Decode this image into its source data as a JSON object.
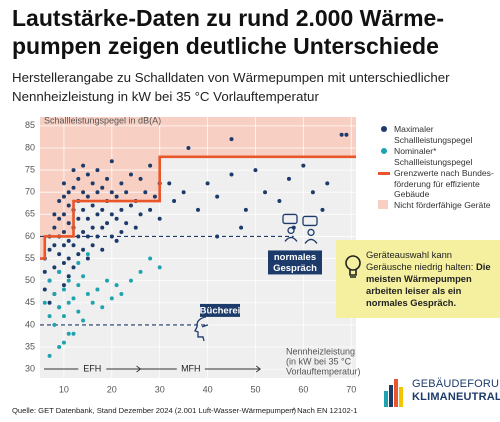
{
  "chart_data": {
    "type": "scatter",
    "title_lines": [
      "Lautstärke-Daten zu rund 2.000 Wärme-",
      "pumpen zeigen deutliche Unterschiede"
    ],
    "subtitle_lines": [
      "Herstellerangabe zu Schalldaten von Wärmepumpen mit unterschiedlicher",
      "Nennheizleistung in kW bei 35 °C Vorlauftemperatur"
    ],
    "y_label": "Schallleistungspegel in dB(A)",
    "x_label_lines": [
      "Nennheizleistung",
      "(in kW bei 35 °C",
      "Vorlauftemperatur)"
    ],
    "xlim": [
      5,
      71
    ],
    "ylim": [
      28,
      87
    ],
    "xticks": [
      10,
      20,
      30,
      40,
      50,
      60,
      70
    ],
    "yticks": [
      30,
      35,
      40,
      45,
      50,
      55,
      60,
      65,
      70,
      75,
      80,
      85
    ],
    "grid": true,
    "series": [
      {
        "name": "Maximaler Schallleistungspegel",
        "color": "#1d3b6a",
        "x": [
          6,
          6,
          6,
          7,
          7,
          7,
          7,
          8,
          8,
          8,
          8,
          8,
          9,
          9,
          9,
          9,
          9,
          9,
          10,
          10,
          10,
          10,
          10,
          10,
          10,
          11,
          11,
          11,
          11,
          11,
          11,
          12,
          12,
          12,
          12,
          12,
          12,
          13,
          13,
          13,
          13,
          13,
          14,
          14,
          14,
          14,
          14,
          15,
          15,
          15,
          15,
          15,
          16,
          16,
          16,
          16,
          17,
          17,
          17,
          17,
          18,
          18,
          18,
          18,
          19,
          19,
          19,
          20,
          20,
          20,
          20,
          21,
          21,
          21,
          22,
          22,
          22,
          23,
          23,
          24,
          24,
          25,
          25,
          26,
          26,
          27,
          28,
          28,
          29,
          30,
          30,
          32,
          33,
          35,
          36,
          38,
          40,
          42,
          42,
          45,
          45,
          47,
          48,
          50,
          52,
          55,
          57,
          58,
          60,
          62,
          64,
          65,
          68,
          69
        ],
        "values": [
          55,
          52,
          48,
          60,
          57,
          50,
          45,
          65,
          62,
          58,
          53,
          47,
          68,
          64,
          60,
          56,
          52,
          44,
          72,
          69,
          65,
          61,
          58,
          54,
          49,
          70,
          67,
          63,
          59,
          55,
          51,
          75,
          71,
          66,
          62,
          58,
          53,
          73,
          68,
          64,
          60,
          56,
          76,
          70,
          66,
          61,
          57,
          74,
          69,
          64,
          60,
          55,
          72,
          67,
          62,
          58,
          75,
          70,
          65,
          60,
          71,
          66,
          62,
          57,
          73,
          68,
          63,
          77,
          70,
          65,
          60,
          69,
          64,
          59,
          72,
          66,
          61,
          70,
          63,
          74,
          67,
          68,
          62,
          73,
          65,
          70,
          76,
          66,
          69,
          72,
          64,
          72,
          68,
          70,
          80,
          66,
          72,
          69,
          60,
          74,
          82,
          62,
          66,
          75,
          70,
          68,
          73,
          62,
          76,
          70,
          66,
          72,
          83,
          83
        ]
      },
      {
        "name": "Nominaler* Schallleistungspegel",
        "color": "#1fa3b0",
        "x": [
          6,
          7,
          7,
          8,
          8,
          9,
          9,
          10,
          10,
          10,
          11,
          11,
          12,
          12,
          13,
          13,
          14,
          14,
          15,
          16,
          17,
          18,
          19,
          20,
          21,
          22,
          24,
          26,
          28,
          30,
          7,
          9,
          11,
          13,
          15
        ],
        "values": [
          45,
          42,
          50,
          47,
          40,
          52,
          44,
          48,
          42,
          36,
          50,
          45,
          46,
          38,
          49,
          43,
          51,
          41,
          47,
          45,
          48,
          44,
          50,
          46,
          49,
          47,
          50,
          52,
          55,
          53,
          33,
          35,
          38,
          54,
          56
        ]
      }
    ],
    "limit": {
      "name": "Grenzwerte nach Bundes-förderung für effiziente Gebäude",
      "color": "#e8562a",
      "x": [
        5,
        6,
        6,
        12,
        12,
        30,
        30,
        71
      ],
      "values": [
        55,
        55,
        60,
        60,
        68,
        68,
        78,
        78
      ]
    },
    "area": {
      "name": "Nicht förderfähige Geräte",
      "color": "#f8cfc3"
    },
    "references": [
      {
        "value": 60,
        "end": 58,
        "label_lines": [
          "normales",
          "Gespräch"
        ]
      },
      {
        "value": 40,
        "end": 40,
        "label_lines": [
          "Bücherei"
        ]
      }
    ],
    "ranges": [
      "EFH",
      "MFH"
    ],
    "callout": {
      "text": "Geräteauswahl kann Geräusche niedrig halten:",
      "bold": "Die meisten Wärmepumpen arbeiten leiser als ein normales Gespräch."
    },
    "source": "Quelle: GET Datenbank, Stand Dezember 2024 (2.001 Luft-Wasser-Wärmepumpen)",
    "footnote": "* Nach EN 12102-1",
    "logo_lines": [
      "GEBÄUDEFORUM",
      "KLIMANEUTRAL"
    ]
  }
}
